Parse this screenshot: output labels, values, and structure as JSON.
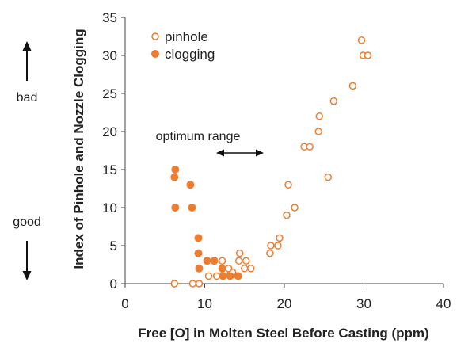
{
  "chart_data": {
    "type": "scatter",
    "xlabel": "Free [O] in Molten Steel Before Casting (ppm)",
    "ylabel": "Index of Pinhole and Nozzle Clogging",
    "xlim": [
      0,
      40
    ],
    "ylim": [
      0,
      35
    ],
    "xticks": [
      "0",
      "10",
      "20",
      "30",
      "40"
    ],
    "yticks": [
      "0",
      "5",
      "10",
      "15",
      "20",
      "25",
      "30",
      "35"
    ],
    "grid": false,
    "legend_position": "top-left",
    "series": [
      {
        "name": "pinhole",
        "marker": "open-circle",
        "color": "#ED7D31",
        "points": [
          [
            6.2,
            0
          ],
          [
            8.5,
            0
          ],
          [
            9.3,
            0
          ],
          [
            10.5,
            1
          ],
          [
            11.5,
            1
          ],
          [
            12.5,
            1.5
          ],
          [
            13.5,
            1.5
          ],
          [
            12.2,
            3
          ],
          [
            13.0,
            2
          ],
          [
            14.3,
            3
          ],
          [
            14.4,
            4
          ],
          [
            15.2,
            3
          ],
          [
            15.0,
            2
          ],
          [
            15.8,
            2
          ],
          [
            18.2,
            4
          ],
          [
            18.3,
            5
          ],
          [
            19.2,
            5
          ],
          [
            19.4,
            6
          ],
          [
            20.3,
            9
          ],
          [
            20.5,
            13
          ],
          [
            21.3,
            10
          ],
          [
            22.5,
            18
          ],
          [
            23.2,
            18
          ],
          [
            24.3,
            20
          ],
          [
            24.4,
            22
          ],
          [
            25.5,
            14
          ],
          [
            26.2,
            24
          ],
          [
            28.6,
            26
          ],
          [
            29.7,
            32
          ],
          [
            29.9,
            30
          ],
          [
            30.5,
            30
          ]
        ]
      },
      {
        "name": "clogging",
        "marker": "filled-circle",
        "color": "#ED7D31",
        "points": [
          [
            6.3,
            15
          ],
          [
            6.2,
            14
          ],
          [
            6.3,
            10
          ],
          [
            8.2,
            13
          ],
          [
            8.4,
            10
          ],
          [
            9.2,
            6
          ],
          [
            9.2,
            4
          ],
          [
            9.3,
            2
          ],
          [
            10.3,
            3
          ],
          [
            11.2,
            3
          ],
          [
            12.2,
            2
          ],
          [
            12.3,
            1
          ],
          [
            13.2,
            1
          ],
          [
            14.2,
            1
          ]
        ]
      }
    ],
    "annotations": {
      "bad": "bad",
      "good": "good",
      "optimum": "optimum range"
    }
  }
}
